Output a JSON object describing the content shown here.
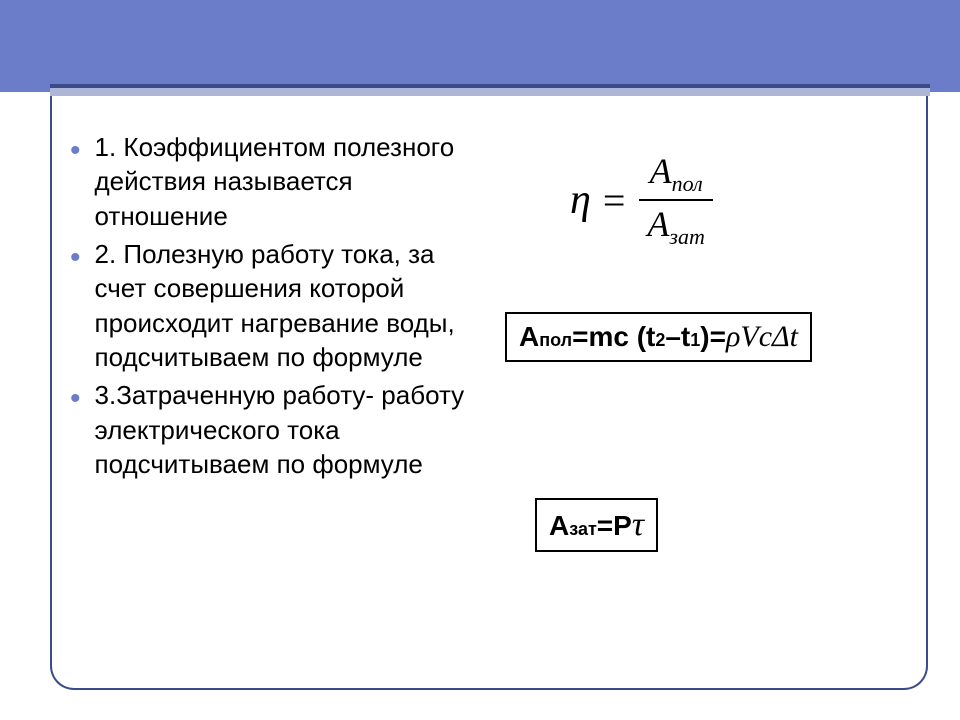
{
  "bullets": [
    "1. Коэффициентом полезного действия называется отношение",
    "2. Полезную работу тока, за счет совершения которой происходит нагревание воды, подсчитываем по формуле",
    "3.Затраченную работу- работу электрического тока подсчитываем по формуле"
  ],
  "formula1": {
    "lhs": "η",
    "eq": "=",
    "num_main": "A",
    "num_sub": "пол",
    "den_main": "A",
    "den_sub": "зат"
  },
  "formula2": {
    "a": "А ",
    "sub1": "пол",
    "mid": "=mc (t",
    "s2": "2",
    "dash": " –t",
    "s1": "1",
    "close": ")=",
    "rhs": "ρVcΔt"
  },
  "formula3": {
    "a": "А ",
    "sub": "зат",
    "eq": "=P ",
    "tau": "τ"
  },
  "colors": {
    "header": "#6b7cc8",
    "line": "#3b4a8a",
    "bullet": "#6b7cc8"
  }
}
